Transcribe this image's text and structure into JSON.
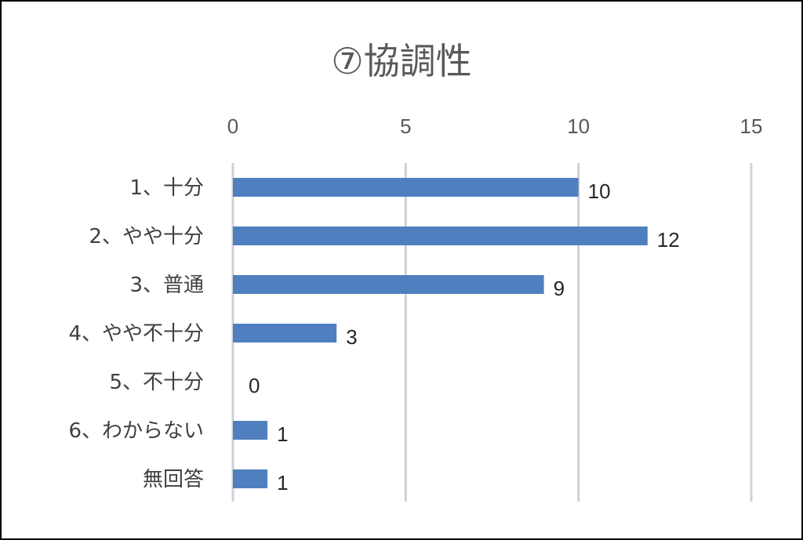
{
  "chart_data": {
    "type": "bar",
    "orientation": "horizontal",
    "title": "⑦協調性",
    "categories": [
      "1、十分",
      "2、やや十分",
      "3、普通",
      "4、やや不十分",
      "5、不十分",
      "6、わからない",
      "無回答"
    ],
    "values": [
      10,
      12,
      9,
      3,
      0,
      1,
      1
    ],
    "xlim": [
      0,
      15
    ],
    "xticks": [
      "0",
      "5",
      "10",
      "15"
    ],
    "tick_values": [
      0,
      5,
      10,
      15
    ],
    "x_axis_position": "top",
    "grid": true,
    "legend": false,
    "data_labels": true,
    "bar_color": "#4f7fbf",
    "grid_color": "#d0d0d8"
  }
}
